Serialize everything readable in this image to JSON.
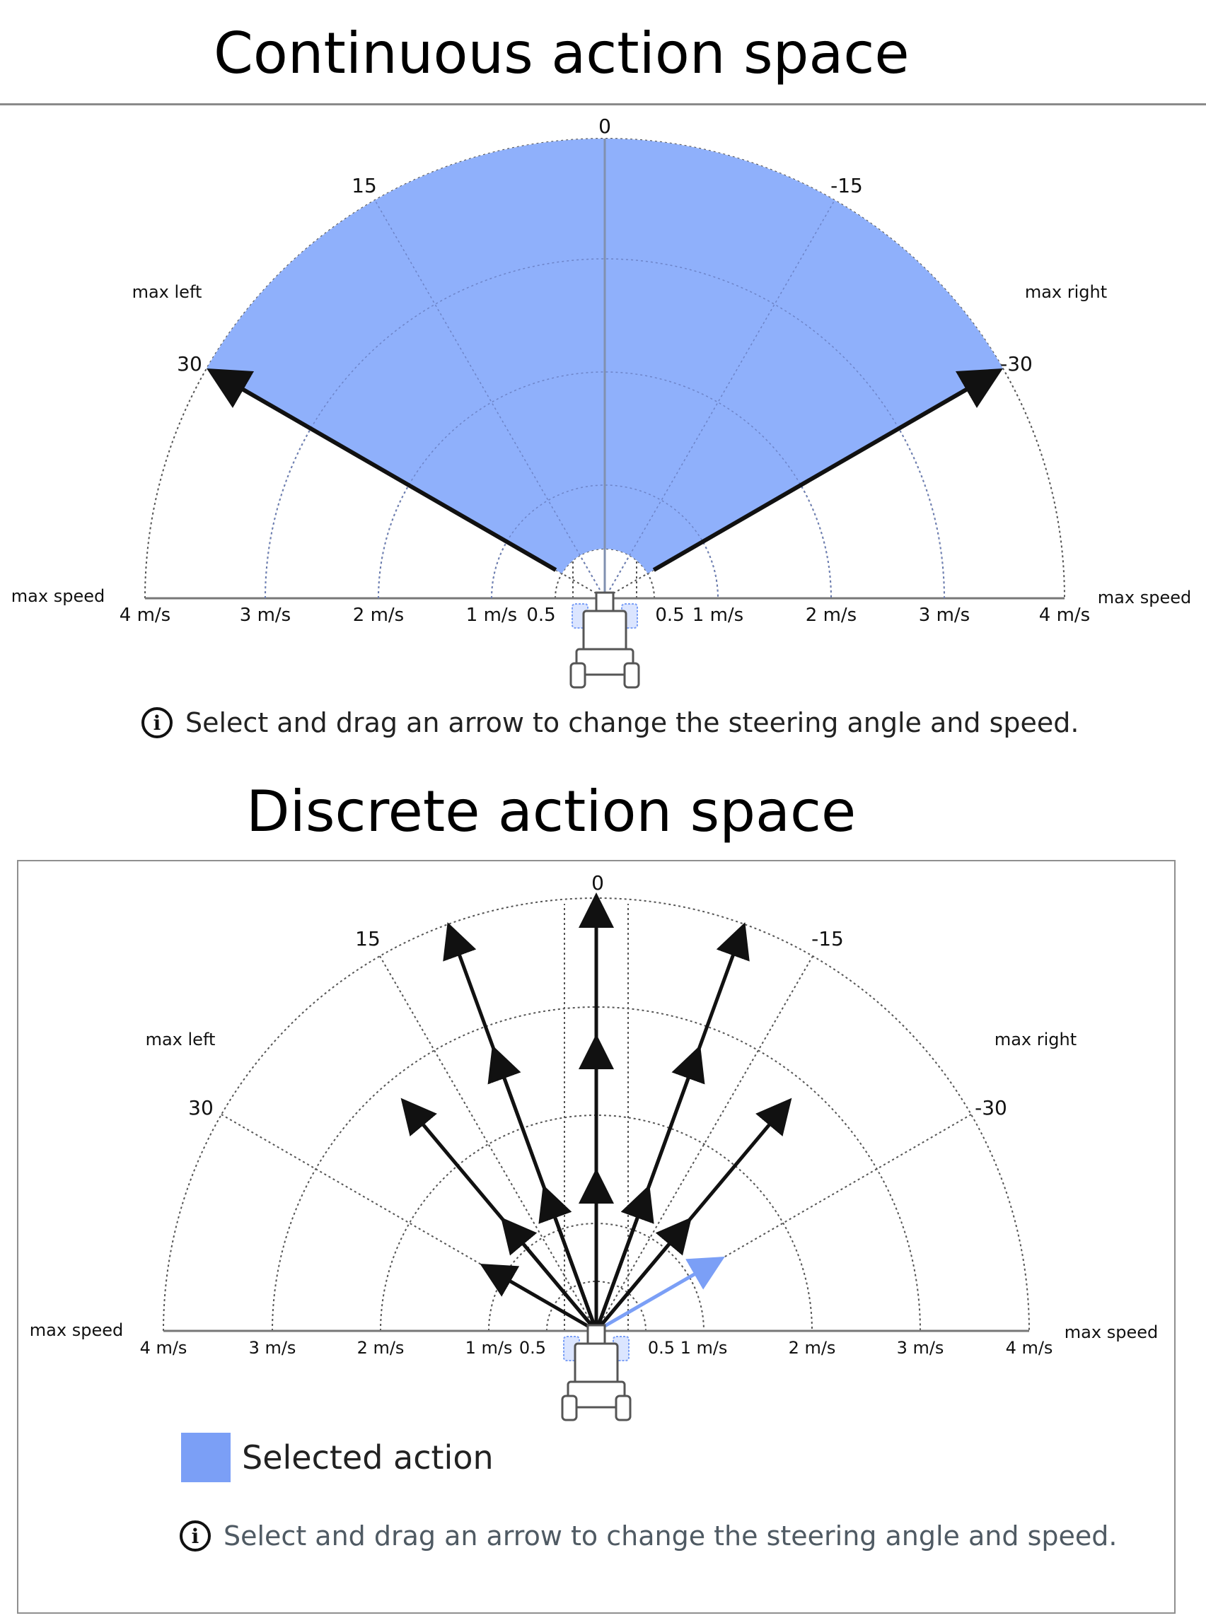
{
  "continuous": {
    "title": "Continuous action space",
    "angle_labels": {
      "center": "0",
      "left_mid": "15",
      "right_mid": "-15",
      "left_max": "30",
      "right_max": "-30"
    },
    "max_left": "max left",
    "max_right": "max right",
    "max_speed_left": "max speed",
    "max_speed_right": "max speed",
    "speed_ticks_left": [
      "4 m/s",
      "3 m/s",
      "2 m/s",
      "1 m/s",
      "0.5"
    ],
    "speed_ticks_right": [
      "0.5",
      "1 m/s",
      "2 m/s",
      "3 m/s",
      "4 m/s"
    ],
    "info": "Select and drag an arrow to change the steering angle and speed."
  },
  "discrete": {
    "title": "Discrete action space",
    "angle_labels": {
      "center": "0",
      "left_mid": "15",
      "right_mid": "-15",
      "left_max": "30",
      "right_max": "-30"
    },
    "max_left": "max left",
    "max_right": "max right",
    "max_speed_left": "max speed",
    "max_speed_right": "max speed",
    "speed_ticks_left": [
      "4 m/s",
      "3 m/s",
      "2 m/s",
      "1 m/s",
      "0.5"
    ],
    "speed_ticks_right": [
      "0.5",
      "1 m/s",
      "2 m/s",
      "3 m/s",
      "4 m/s"
    ],
    "legend_label": "Selected action",
    "info": "Select and drag an arrow to change the steering angle and speed."
  },
  "colors": {
    "selected": "#7b9ff6",
    "region": "#8fb0fb",
    "arrow": "#111111",
    "grid": "#555555"
  },
  "icons": {
    "info": "info-circle-icon",
    "car": "car-icon"
  }
}
